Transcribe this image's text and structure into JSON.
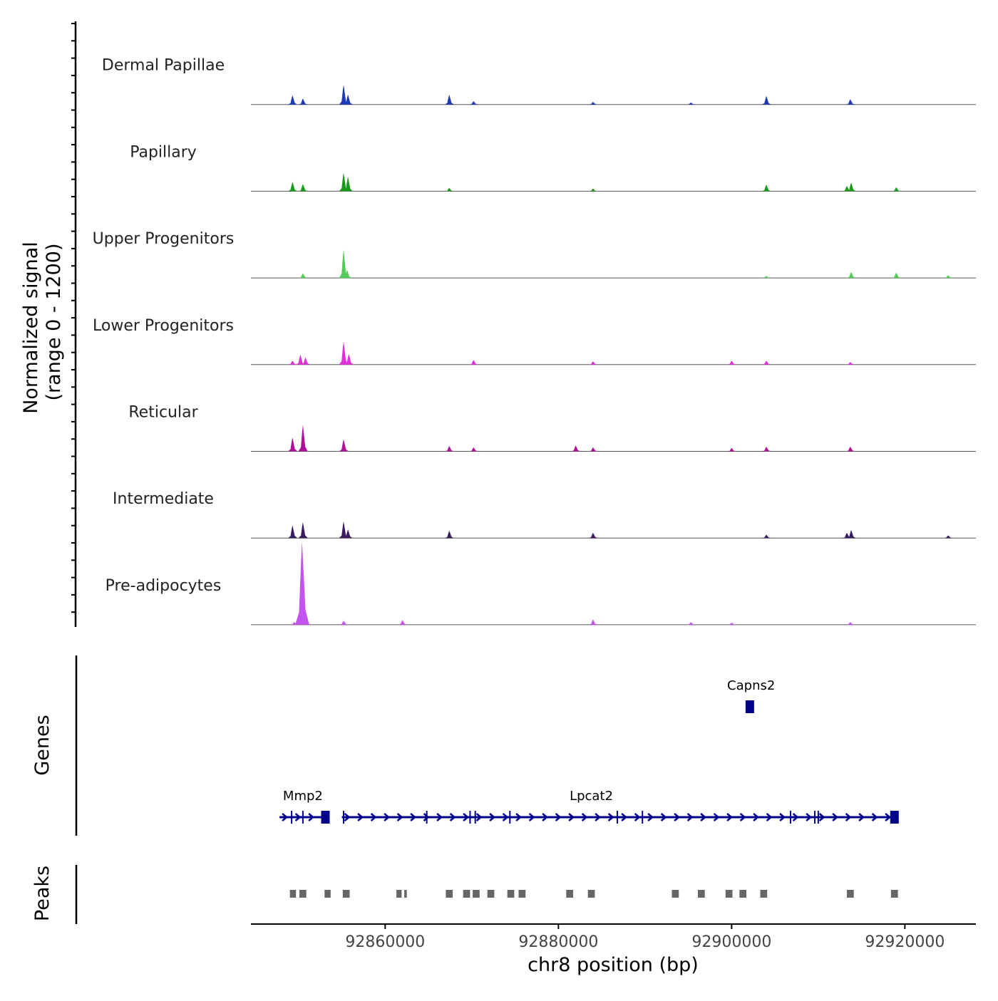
{
  "chart_data": {
    "type": "area",
    "ylabel_line1": "Normalized signal",
    "ylabel_line2": "(range 0 - 1200)",
    "ylim": [
      0,
      1200
    ],
    "xlabel": "chr8 position (bp)",
    "xlim": [
      92844500,
      92928200
    ],
    "x_ticks": [
      {
        "value": 92860000,
        "label": "92860000"
      },
      {
        "value": 92880000,
        "label": "92880000"
      },
      {
        "value": 92900000,
        "label": "92900000"
      },
      {
        "value": 92920000,
        "label": "92920000"
      }
    ],
    "tracks": [
      {
        "name": "Dermal Papillae",
        "color": "#1f3bb3",
        "peaks": [
          [
            92849300,
            140
          ],
          [
            92850500,
            90
          ],
          [
            92855200,
            300
          ],
          [
            92855700,
            150
          ],
          [
            92867400,
            150
          ],
          [
            92870200,
            50
          ],
          [
            92884000,
            40
          ],
          [
            92895300,
            30
          ],
          [
            92904000,
            130
          ],
          [
            92913700,
            80
          ]
        ]
      },
      {
        "name": "Papillary",
        "color": "#1a9a1a",
        "peaks": [
          [
            92849300,
            140
          ],
          [
            92850500,
            110
          ],
          [
            92855200,
            280
          ],
          [
            92855700,
            220
          ],
          [
            92867400,
            50
          ],
          [
            92884000,
            40
          ],
          [
            92904000,
            100
          ],
          [
            92913300,
            80
          ],
          [
            92913800,
            130
          ],
          [
            92919000,
            60
          ]
        ]
      },
      {
        "name": "Upper Progenitors",
        "color": "#55cc5a",
        "peaks": [
          [
            92850500,
            70
          ],
          [
            92855200,
            430
          ],
          [
            92855600,
            120
          ],
          [
            92904000,
            30
          ],
          [
            92913800,
            90
          ],
          [
            92919000,
            80
          ],
          [
            92925000,
            40
          ]
        ]
      },
      {
        "name": "Lower Progenitors",
        "color": "#e030d8",
        "peaks": [
          [
            92849300,
            60
          ],
          [
            92850200,
            150
          ],
          [
            92850800,
            110
          ],
          [
            92855200,
            350
          ],
          [
            92855800,
            160
          ],
          [
            92870200,
            70
          ],
          [
            92884000,
            50
          ],
          [
            92900000,
            60
          ],
          [
            92904000,
            60
          ],
          [
            92913700,
            40
          ]
        ]
      },
      {
        "name": "Reticular",
        "color": "#b01098",
        "peaks": [
          [
            92849300,
            210
          ],
          [
            92850500,
            400
          ],
          [
            92855200,
            180
          ],
          [
            92867400,
            80
          ],
          [
            92870200,
            60
          ],
          [
            92882000,
            90
          ],
          [
            92884000,
            60
          ],
          [
            92900000,
            50
          ],
          [
            92904000,
            70
          ],
          [
            92913700,
            70
          ]
        ]
      },
      {
        "name": "Intermediate",
        "color": "#3a1b5e",
        "peaks": [
          [
            92849300,
            190
          ],
          [
            92850500,
            240
          ],
          [
            92855200,
            250
          ],
          [
            92855700,
            130
          ],
          [
            92867400,
            110
          ],
          [
            92884000,
            80
          ],
          [
            92904000,
            50
          ],
          [
            92913300,
            80
          ],
          [
            92913800,
            120
          ],
          [
            92925000,
            40
          ]
        ]
      },
      {
        "name": "Pre-adipocytes",
        "color": "#c454f0",
        "peaks": [
          [
            92849500,
            40
          ],
          [
            92850400,
            1250
          ],
          [
            92855200,
            60
          ],
          [
            92862000,
            70
          ],
          [
            92884000,
            80
          ],
          [
            92895300,
            40
          ],
          [
            92900000,
            30
          ],
          [
            92913700,
            40
          ]
        ]
      }
    ],
    "genes_label": "Genes",
    "genes": [
      {
        "name": "Mmp2",
        "start": 92847800,
        "end": 92853200,
        "strand": "+",
        "exons": [
          92849200,
          92850500,
          92853100
        ]
      },
      {
        "name": "Lpcat2",
        "start": 92855000,
        "end": 92919100,
        "strand": "+",
        "exons": [
          92855200,
          92864800,
          92869800,
          92870400,
          92874400,
          92886800,
          92889700,
          92906800,
          92909600,
          92910000,
          92918800
        ]
      },
      {
        "name": "Capns2",
        "start": 92901900,
        "end": 92902600,
        "strand": "+",
        "exons": [
          92902100
        ]
      }
    ],
    "peaks_label": "Peaks",
    "peaks": [
      [
        92849000,
        92849700
      ],
      [
        92850100,
        92850900
      ],
      [
        92853000,
        92853700
      ],
      [
        92855100,
        92855900
      ],
      [
        92861300,
        92861900
      ],
      [
        92862200,
        92862500
      ],
      [
        92867000,
        92867800
      ],
      [
        92869000,
        92869800
      ],
      [
        92870100,
        92870900
      ],
      [
        92871800,
        92872600
      ],
      [
        92874100,
        92874900
      ],
      [
        92875400,
        92876200
      ],
      [
        92880900,
        92881700
      ],
      [
        92883400,
        92884200
      ],
      [
        92893100,
        92893900
      ],
      [
        92896100,
        92896900
      ],
      [
        92899300,
        92900100
      ],
      [
        92900900,
        92901700
      ],
      [
        92903300,
        92904100
      ],
      [
        92913300,
        92914100
      ],
      [
        92918400,
        92919200
      ]
    ]
  }
}
